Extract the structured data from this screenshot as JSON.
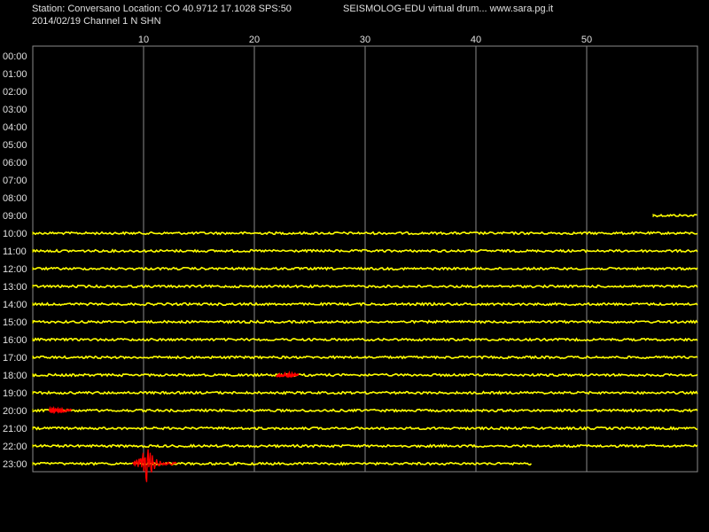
{
  "header": {
    "station_line": "Station: Conversano Location: CO 40.9712 17.1028 SPS:50",
    "date_line": "2014/02/19  Channel 1 N SHN",
    "title": "SEISMOLOG-EDU virtual drum... www.sara.pg.it"
  },
  "colors": {
    "background": "#000000",
    "trace": "#ffff00",
    "event": "#ff0000",
    "grid": "#8a8a8a",
    "text": "#e0e0e0"
  },
  "chart_data": {
    "type": "line",
    "title": "SEISMOLOG-EDU virtual drum... www.sara.pg.it",
    "xlabel": "",
    "ylabel": "",
    "x_unit": "minutes",
    "xlim": [
      0,
      60
    ],
    "x_ticks": [
      10,
      20,
      30,
      40,
      50
    ],
    "hour_labels": [
      "00:00",
      "01:00",
      "02:00",
      "03:00",
      "04:00",
      "05:00",
      "06:00",
      "07:00",
      "08:00",
      "09:00",
      "10:00",
      "11:00",
      "12:00",
      "13:00",
      "14:00",
      "15:00",
      "16:00",
      "17:00",
      "18:00",
      "19:00",
      "20:00",
      "21:00",
      "22:00",
      "23:00"
    ],
    "grid": true,
    "traces": [
      {
        "hour": "09:00",
        "start_min": 56,
        "end_min": 60
      },
      {
        "hour": "10:00",
        "start_min": 0,
        "end_min": 60
      },
      {
        "hour": "11:00",
        "start_min": 0,
        "end_min": 60
      },
      {
        "hour": "12:00",
        "start_min": 0,
        "end_min": 60
      },
      {
        "hour": "13:00",
        "start_min": 0,
        "end_min": 60
      },
      {
        "hour": "14:00",
        "start_min": 0,
        "end_min": 60
      },
      {
        "hour": "15:00",
        "start_min": 0,
        "end_min": 60
      },
      {
        "hour": "16:00",
        "start_min": 0,
        "end_min": 60
      },
      {
        "hour": "17:00",
        "start_min": 0,
        "end_min": 60
      },
      {
        "hour": "18:00",
        "start_min": 0,
        "end_min": 60
      },
      {
        "hour": "19:00",
        "start_min": 0,
        "end_min": 60
      },
      {
        "hour": "20:00",
        "start_min": 0,
        "end_min": 60
      },
      {
        "hour": "21:00",
        "start_min": 0,
        "end_min": 60
      },
      {
        "hour": "22:00",
        "start_min": 0,
        "end_min": 60
      },
      {
        "hour": "23:00",
        "start_min": 0,
        "end_min": 45
      }
    ],
    "events": [
      {
        "hour": "18:00",
        "start_min": 22,
        "end_min": 24,
        "amplitude": 0.3
      },
      {
        "hour": "20:00",
        "start_min": 1.5,
        "end_min": 3.5,
        "amplitude": 0.3
      },
      {
        "hour": "23:00",
        "start_min": 9,
        "end_min": 13,
        "peak_min": 10.3,
        "amplitude": 1.0
      }
    ]
  }
}
